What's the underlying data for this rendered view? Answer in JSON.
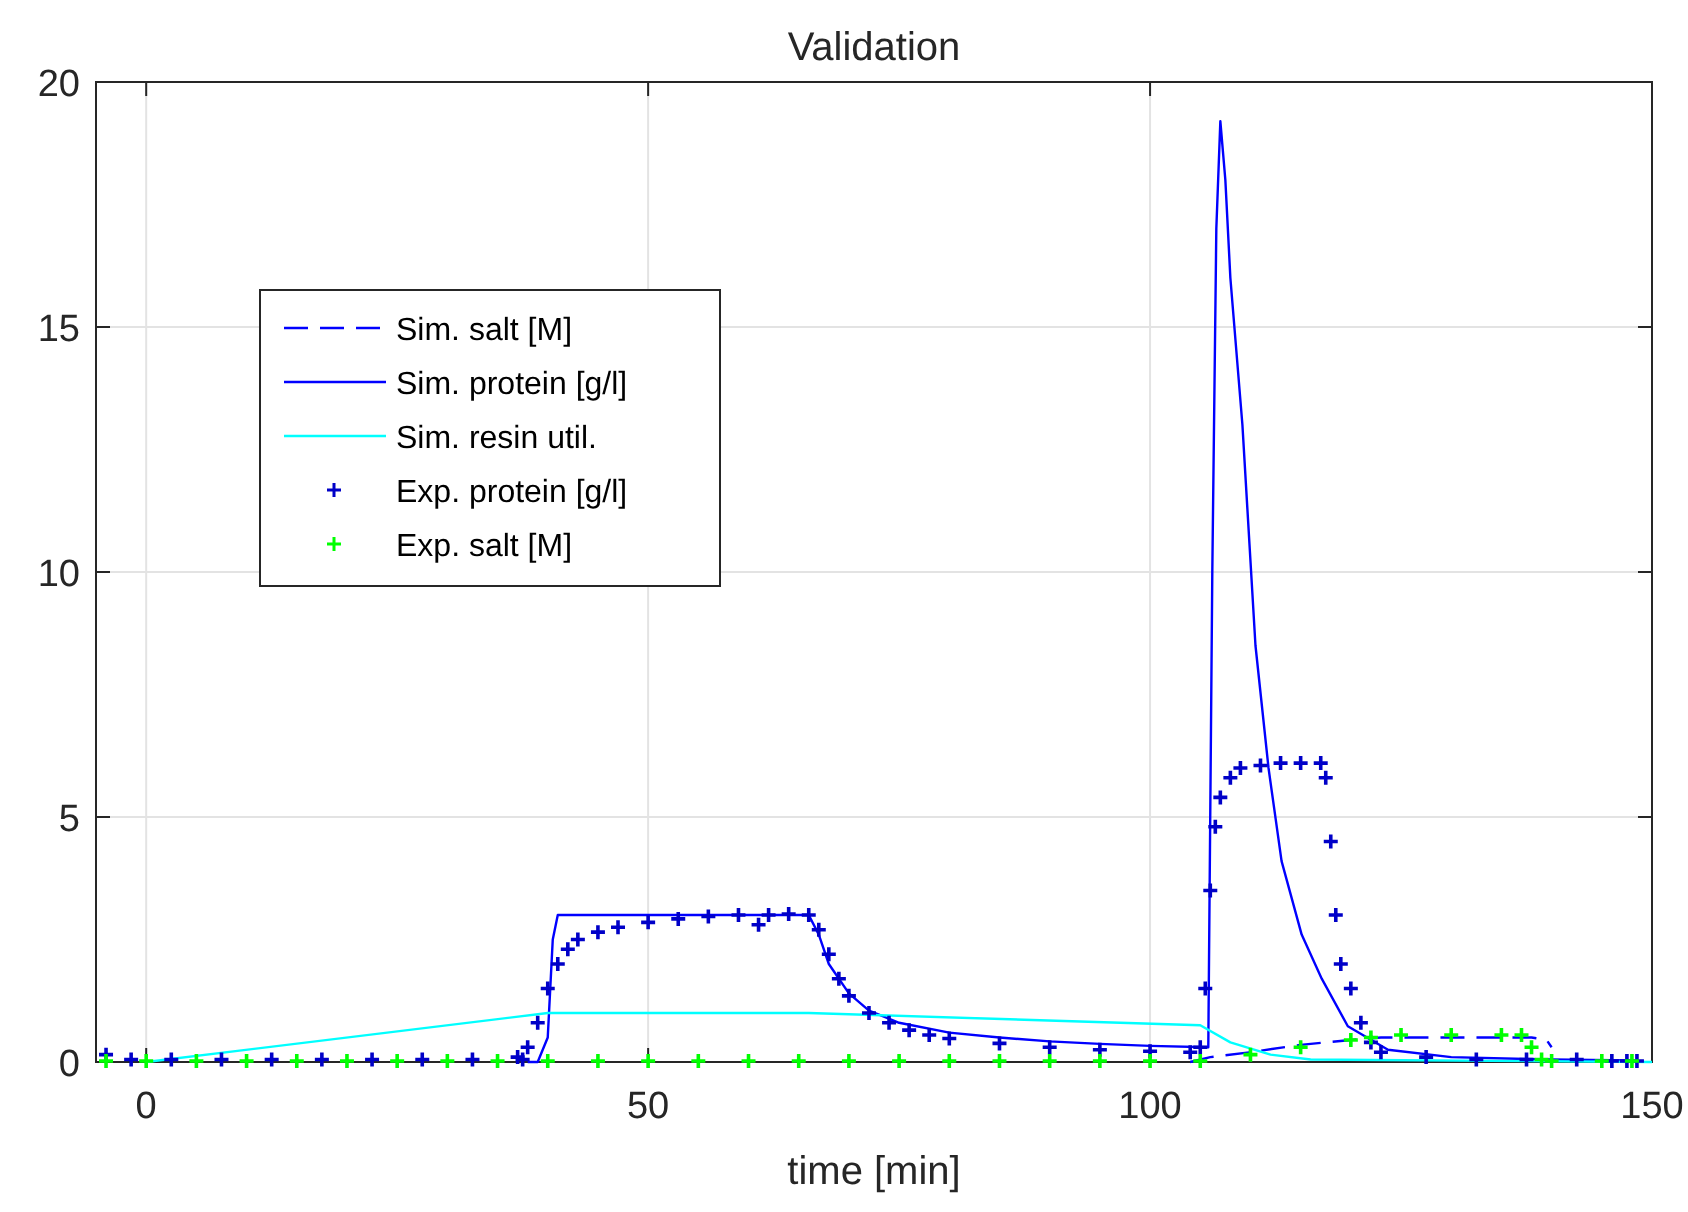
{
  "chart_data": {
    "type": "line",
    "title": "Validation",
    "xlabel": "time [min]",
    "xlim": [
      -5,
      150
    ],
    "xticks": [
      0,
      50,
      100,
      150
    ],
    "ylim": [
      0,
      20
    ],
    "yticks": [
      0,
      5,
      10,
      15,
      20
    ],
    "grid": true,
    "legend": "top left",
    "series": [
      {
        "name": "Sim. salt [M]",
        "type": "line",
        "line_style": "dashed",
        "color": "#0000ff",
        "x": [
          104,
          106,
          110,
          115,
          120,
          123,
          138,
          139.5,
          140
        ],
        "values": [
          0,
          0.1,
          0.2,
          0.35,
          0.45,
          0.5,
          0.5,
          0.45,
          0.3
        ]
      },
      {
        "name": "Sim. protein [g/l]",
        "type": "line",
        "line_style": "solid",
        "color": "#0000ff",
        "x": [
          38,
          39,
          40,
          40.5,
          41,
          66,
          67,
          68,
          70,
          72,
          75,
          80,
          85,
          90,
          95,
          100,
          105.8,
          106.2,
          106.6,
          107,
          107.5,
          108,
          109.2,
          110.5,
          111.8,
          113.1,
          115.1,
          117.1,
          119.7,
          123.7,
          130,
          140,
          148
        ],
        "values": [
          0,
          0,
          0.5,
          2.5,
          3.0,
          3.0,
          2.6,
          2.0,
          1.4,
          1.05,
          0.8,
          0.6,
          0.5,
          0.42,
          0.37,
          0.33,
          0.3,
          10,
          17,
          19.2,
          18,
          16,
          13,
          8.5,
          6,
          4.1,
          2.6,
          1.7,
          0.73,
          0.25,
          0.1,
          0.05,
          0.03
        ]
      },
      {
        "name": "Sim. resin util.",
        "type": "line",
        "line_style": "solid",
        "color": "#00ffff",
        "x": [
          0,
          40,
          66,
          105,
          108,
          112,
          116,
          150
        ],
        "values": [
          0,
          1.0,
          1.0,
          0.75,
          0.4,
          0.15,
          0.05,
          0
        ]
      },
      {
        "name": "Exp. protein [g/l]",
        "type": "scatter",
        "marker": "cross",
        "color": "#0000c8",
        "x": [
          -4,
          -1.5,
          2.5,
          7.5,
          12.5,
          17.5,
          22.5,
          27.5,
          32.5,
          37.5,
          37,
          38,
          39,
          40,
          41,
          42,
          43,
          45,
          47,
          50,
          53,
          56,
          59,
          61,
          62,
          64,
          66,
          67,
          68,
          69,
          70,
          72,
          74,
          76,
          78,
          80,
          85,
          90,
          95,
          100,
          104,
          105,
          105.5,
          106,
          106.5,
          107,
          108,
          109,
          111,
          113,
          115,
          117,
          117.5,
          118,
          118.5,
          119,
          120,
          121,
          122,
          123,
          127.5,
          132.5,
          137.5,
          142.5,
          146,
          147.5,
          148.5
        ],
        "values": [
          0.15,
          0.05,
          0.05,
          0.05,
          0.05,
          0.05,
          0.05,
          0.05,
          0.05,
          0.05,
          0.1,
          0.3,
          0.8,
          1.5,
          2.0,
          2.3,
          2.5,
          2.65,
          2.75,
          2.85,
          2.92,
          2.97,
          3.0,
          2.8,
          3.0,
          3.02,
          3.0,
          2.7,
          2.2,
          1.7,
          1.35,
          1.0,
          0.8,
          0.65,
          0.55,
          0.48,
          0.38,
          0.3,
          0.25,
          0.22,
          0.2,
          0.3,
          1.5,
          3.5,
          4.8,
          5.4,
          5.8,
          6.0,
          6.05,
          6.1,
          6.1,
          6.1,
          5.8,
          4.5,
          3.0,
          2.0,
          1.5,
          0.8,
          0.4,
          0.2,
          0.1,
          0.05,
          0.05,
          0.05,
          0.02,
          0.02,
          0.02
        ]
      },
      {
        "name": "Exp. salt [M]",
        "type": "scatter",
        "marker": "cross",
        "color": "#00ff00",
        "x": [
          -4,
          0,
          5,
          10,
          15,
          20,
          25,
          30,
          35,
          40,
          45,
          50,
          55,
          60,
          65,
          70,
          75,
          80,
          85,
          90,
          95,
          100,
          105,
          110,
          115,
          120,
          122,
          125,
          130,
          135,
          137,
          138,
          139,
          140,
          145,
          148
        ],
        "values": [
          0.02,
          0.02,
          0.02,
          0.02,
          0.02,
          0.02,
          0.02,
          0.02,
          0.02,
          0.02,
          0.02,
          0.02,
          0.02,
          0.02,
          0.02,
          0.02,
          0.02,
          0.02,
          0.02,
          0.02,
          0.02,
          0.02,
          0.02,
          0.15,
          0.3,
          0.45,
          0.5,
          0.55,
          0.55,
          0.55,
          0.55,
          0.3,
          0.05,
          0.02,
          0.02,
          0.02
        ]
      }
    ]
  }
}
